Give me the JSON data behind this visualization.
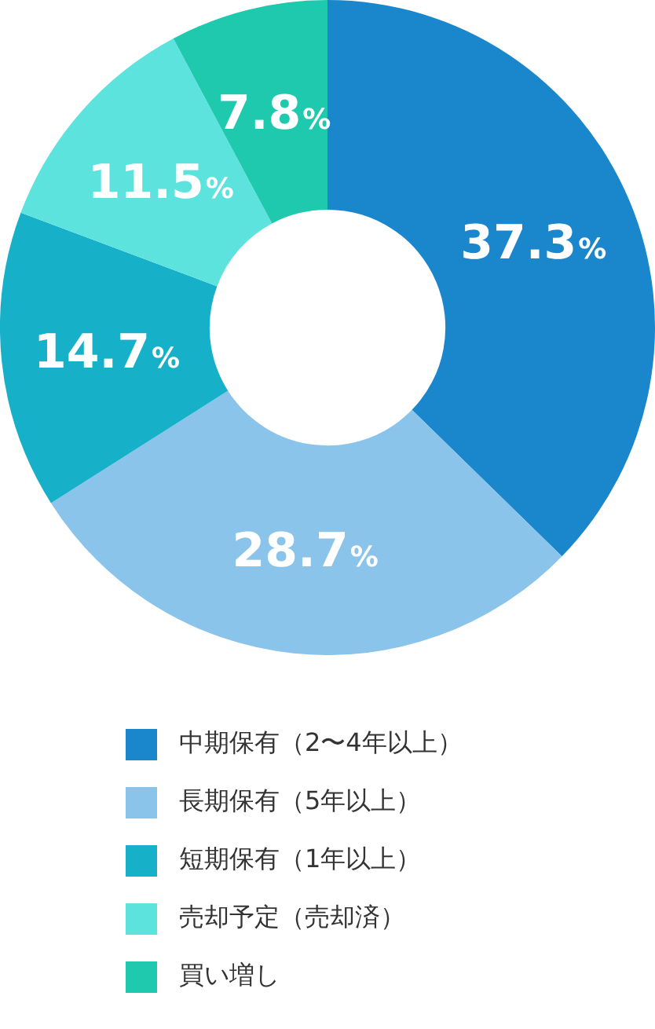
{
  "chart_data": {
    "type": "donut",
    "categories": [
      "中期保有（2〜4年以上）",
      "長期保有（5年以上）",
      "短期保有（1年以上）",
      "売却予定（売却済）",
      "買い増し"
    ],
    "values": [
      37.3,
      28.7,
      14.7,
      11.5,
      7.8
    ],
    "colors": [
      "#1a87cd",
      "#8ac4ea",
      "#17b0c9",
      "#5de3de",
      "#1ec9ad"
    ],
    "value_labels": [
      "37.3%",
      "28.7%",
      "14.7%",
      "11.5%",
      "7.8%"
    ],
    "legend": "bottom"
  }
}
